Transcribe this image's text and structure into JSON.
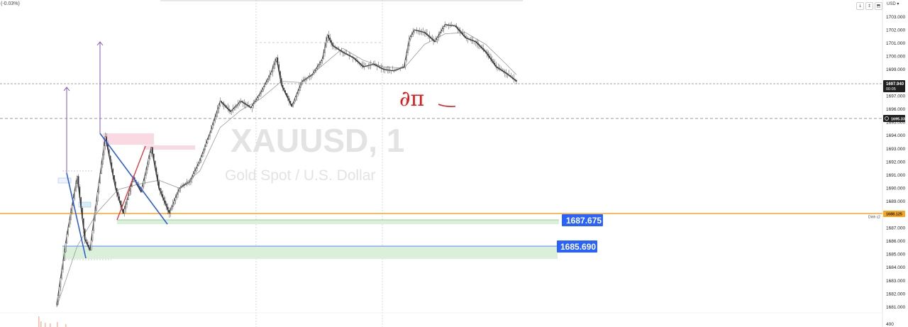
{
  "header": {
    "change_pct": "(-0.03%)",
    "currency_label": "USD ▾",
    "buttons": [
      "↓",
      "↕",
      "⬒"
    ]
  },
  "watermark": {
    "symbol": "XAUUSD, 1",
    "description": "Gold Spot / U.S. Dollar"
  },
  "annotation_text": "∂π",
  "colors": {
    "candle": "#3a3a3a",
    "ma": "#9a9a9a",
    "blue_tag": "#2962ff",
    "orange_line": "#f5a623",
    "green_zone": "#daf0d9",
    "pink_zone": "#f8d3de",
    "purple_arrow": "#7e57c2",
    "zigzag_blue": "#2f5fd4",
    "zigzag_red": "#e0303a",
    "annotation_red": "#e01b1b"
  },
  "price_tags": {
    "last": {
      "value": "1697.940",
      "sub": "00:05"
    },
    "alert": {
      "value": "1695.331"
    },
    "orange": {
      "value": "1688.125",
      "label": "Dinh c2"
    },
    "level1": {
      "value": "1687.675"
    },
    "level2": {
      "value": "1685.690"
    },
    "volume_tick": "400"
  },
  "chart_data": {
    "type": "candlestick",
    "title": "XAUUSD, 1",
    "subtitle": "Gold Spot / U.S. Dollar",
    "y_ticks": [
      "1703.000",
      "1702.000",
      "1701.000",
      "1700.000",
      "1699.000",
      "1698.000",
      "1697.000",
      "1696.000",
      "1695.000",
      "1694.000",
      "1693.000",
      "1692.000",
      "1691.000",
      "1690.000",
      "1689.000",
      "1688.000",
      "1687.000",
      "1686.000",
      "1685.000",
      "1684.000",
      "1683.000",
      "1682.000",
      "1681.000"
    ],
    "ylim": [
      1680.85,
      1703.75
    ],
    "price_path": [
      [
        0,
        1681.2
      ],
      [
        4,
        1686.5
      ],
      [
        8,
        1690.9
      ],
      [
        11,
        1686.1
      ],
      [
        13,
        1685.3
      ],
      [
        15,
        1688.3
      ],
      [
        19,
        1693.9
      ],
      [
        23,
        1690.0
      ],
      [
        26,
        1688.1
      ],
      [
        30,
        1690.8
      ],
      [
        33,
        1689.7
      ],
      [
        37,
        1693.1
      ],
      [
        40,
        1690.0
      ],
      [
        44,
        1688.1
      ],
      [
        48,
        1690.0
      ],
      [
        52,
        1690.5
      ],
      [
        56,
        1692.1
      ],
      [
        60,
        1694.2
      ],
      [
        64,
        1696.6
      ],
      [
        68,
        1695.8
      ],
      [
        72,
        1696.6
      ],
      [
        76,
        1696.1
      ],
      [
        80,
        1697.3
      ],
      [
        84,
        1698.8
      ],
      [
        86,
        1699.9
      ],
      [
        88,
        1697.8
      ],
      [
        92,
        1696.2
      ],
      [
        96,
        1698.1
      ],
      [
        100,
        1698.6
      ],
      [
        104,
        1699.8
      ],
      [
        106,
        1701.6
      ],
      [
        108,
        1700.8
      ],
      [
        112,
        1700.3
      ],
      [
        116,
        1699.9
      ],
      [
        120,
        1699.2
      ],
      [
        124,
        1699.4
      ],
      [
        128,
        1699.0
      ],
      [
        132,
        1698.9
      ],
      [
        136,
        1699.2
      ],
      [
        138,
        1701.3
      ],
      [
        140,
        1702.0
      ],
      [
        144,
        1701.8
      ],
      [
        148,
        1701.1
      ],
      [
        152,
        1702.4
      ],
      [
        156,
        1702.3
      ],
      [
        160,
        1701.4
      ],
      [
        164,
        1701.1
      ],
      [
        168,
        1700.3
      ],
      [
        172,
        1699.2
      ],
      [
        176,
        1698.7
      ],
      [
        180,
        1698.1
      ]
    ],
    "ma_path": [
      [
        0,
        1681.0
      ],
      [
        8,
        1685.6
      ],
      [
        16,
        1688.2
      ],
      [
        24,
        1689.9
      ],
      [
        32,
        1690.3
      ],
      [
        40,
        1690.6
      ],
      [
        48,
        1690.0
      ],
      [
        56,
        1691.3
      ],
      [
        64,
        1694.6
      ],
      [
        72,
        1695.9
      ],
      [
        80,
        1696.8
      ],
      [
        88,
        1698.1
      ],
      [
        96,
        1698.0
      ],
      [
        104,
        1699.3
      ],
      [
        112,
        1700.6
      ],
      [
        120,
        1699.7
      ],
      [
        128,
        1699.2
      ],
      [
        136,
        1699.1
      ],
      [
        144,
        1700.9
      ],
      [
        152,
        1701.7
      ],
      [
        160,
        1701.8
      ],
      [
        168,
        1700.9
      ],
      [
        176,
        1699.4
      ],
      [
        180,
        1698.6
      ]
    ],
    "levels": [
      {
        "price": 1697.94,
        "label": "1697.940"
      },
      {
        "price": 1695.331,
        "label": "1695.331"
      },
      {
        "price": 1688.125,
        "label": "1688.125"
      },
      {
        "price": 1687.675,
        "label": "1687.675"
      },
      {
        "price": 1685.69,
        "label": "1685.690"
      }
    ]
  }
}
